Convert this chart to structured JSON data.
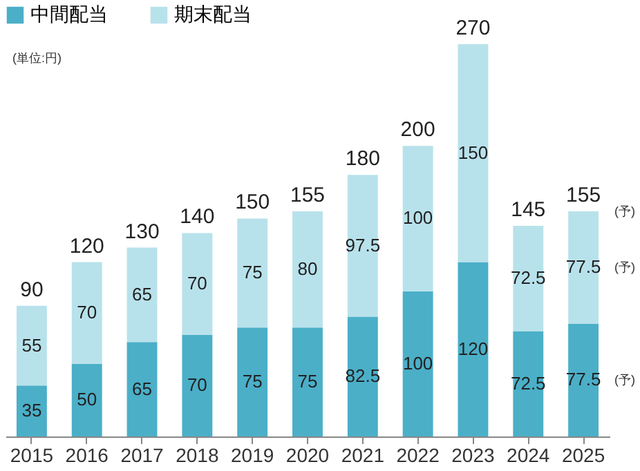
{
  "chart_data": {
    "type": "bar",
    "stacked": true,
    "categories": [
      "2015",
      "2016",
      "2017",
      "2018",
      "2019",
      "2020",
      "2021",
      "2022",
      "2023",
      "2024",
      "2025"
    ],
    "series": [
      {
        "name": "中間配当",
        "color": "#4bafc8",
        "values": [
          35,
          50,
          65,
          70,
          75,
          75,
          82.5,
          100,
          120,
          72.5,
          77.5
        ]
      },
      {
        "name": "期末配当",
        "color": "#b8e2eb",
        "values": [
          55,
          70,
          65,
          70,
          75,
          80,
          97.5,
          100,
          150,
          72.5,
          77.5
        ]
      }
    ],
    "totals": [
      "90",
      "120",
      "130",
      "140",
      "150",
      "155",
      "180",
      "200",
      "270",
      "145",
      "155"
    ],
    "data_labels": true,
    "legend": "top",
    "grid": false,
    "annotations": [
      "(単位:円)",
      "(予)",
      "(予)",
      "(予)"
    ]
  }
}
